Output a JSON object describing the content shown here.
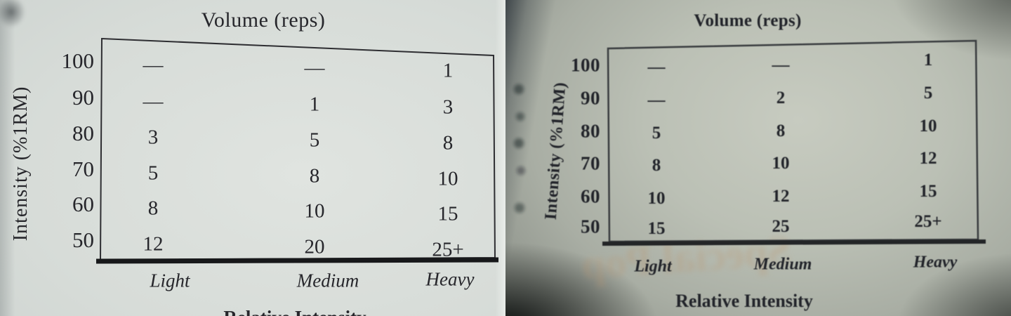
{
  "chart_data": [
    {
      "type": "table",
      "panel": "left-page",
      "title": "Volume (reps)",
      "ylabel": "Intensity (%1RM)",
      "xlabel": "Relative Intensity",
      "columns": [
        "Light",
        "Medium",
        "Heavy"
      ],
      "rows": [
        "100",
        "90",
        "80",
        "70",
        "60",
        "50"
      ],
      "values": [
        [
          "—",
          "—",
          "1"
        ],
        [
          "—",
          "1",
          "3"
        ],
        [
          "3",
          "5",
          "8"
        ],
        [
          "5",
          "8",
          "10"
        ],
        [
          "8",
          "10",
          "15"
        ],
        [
          "12",
          "20",
          "25+"
        ]
      ]
    },
    {
      "type": "table",
      "panel": "right-page",
      "title": "Volume (reps)",
      "ylabel": "Intensity (%1RM)",
      "xlabel": "Relative Intensity",
      "columns": [
        "Light",
        "Medium",
        "Heavy"
      ],
      "rows": [
        "100",
        "90",
        "80",
        "70",
        "60",
        "50"
      ],
      "values": [
        [
          "—",
          "—",
          "1"
        ],
        [
          "—",
          "2",
          "5"
        ],
        [
          "5",
          "8",
          "10"
        ],
        [
          "8",
          "10",
          "12"
        ],
        [
          "10",
          "12",
          "15"
        ],
        [
          "15",
          "25",
          "25+"
        ]
      ],
      "ghost_text": "Special Pop"
    }
  ]
}
